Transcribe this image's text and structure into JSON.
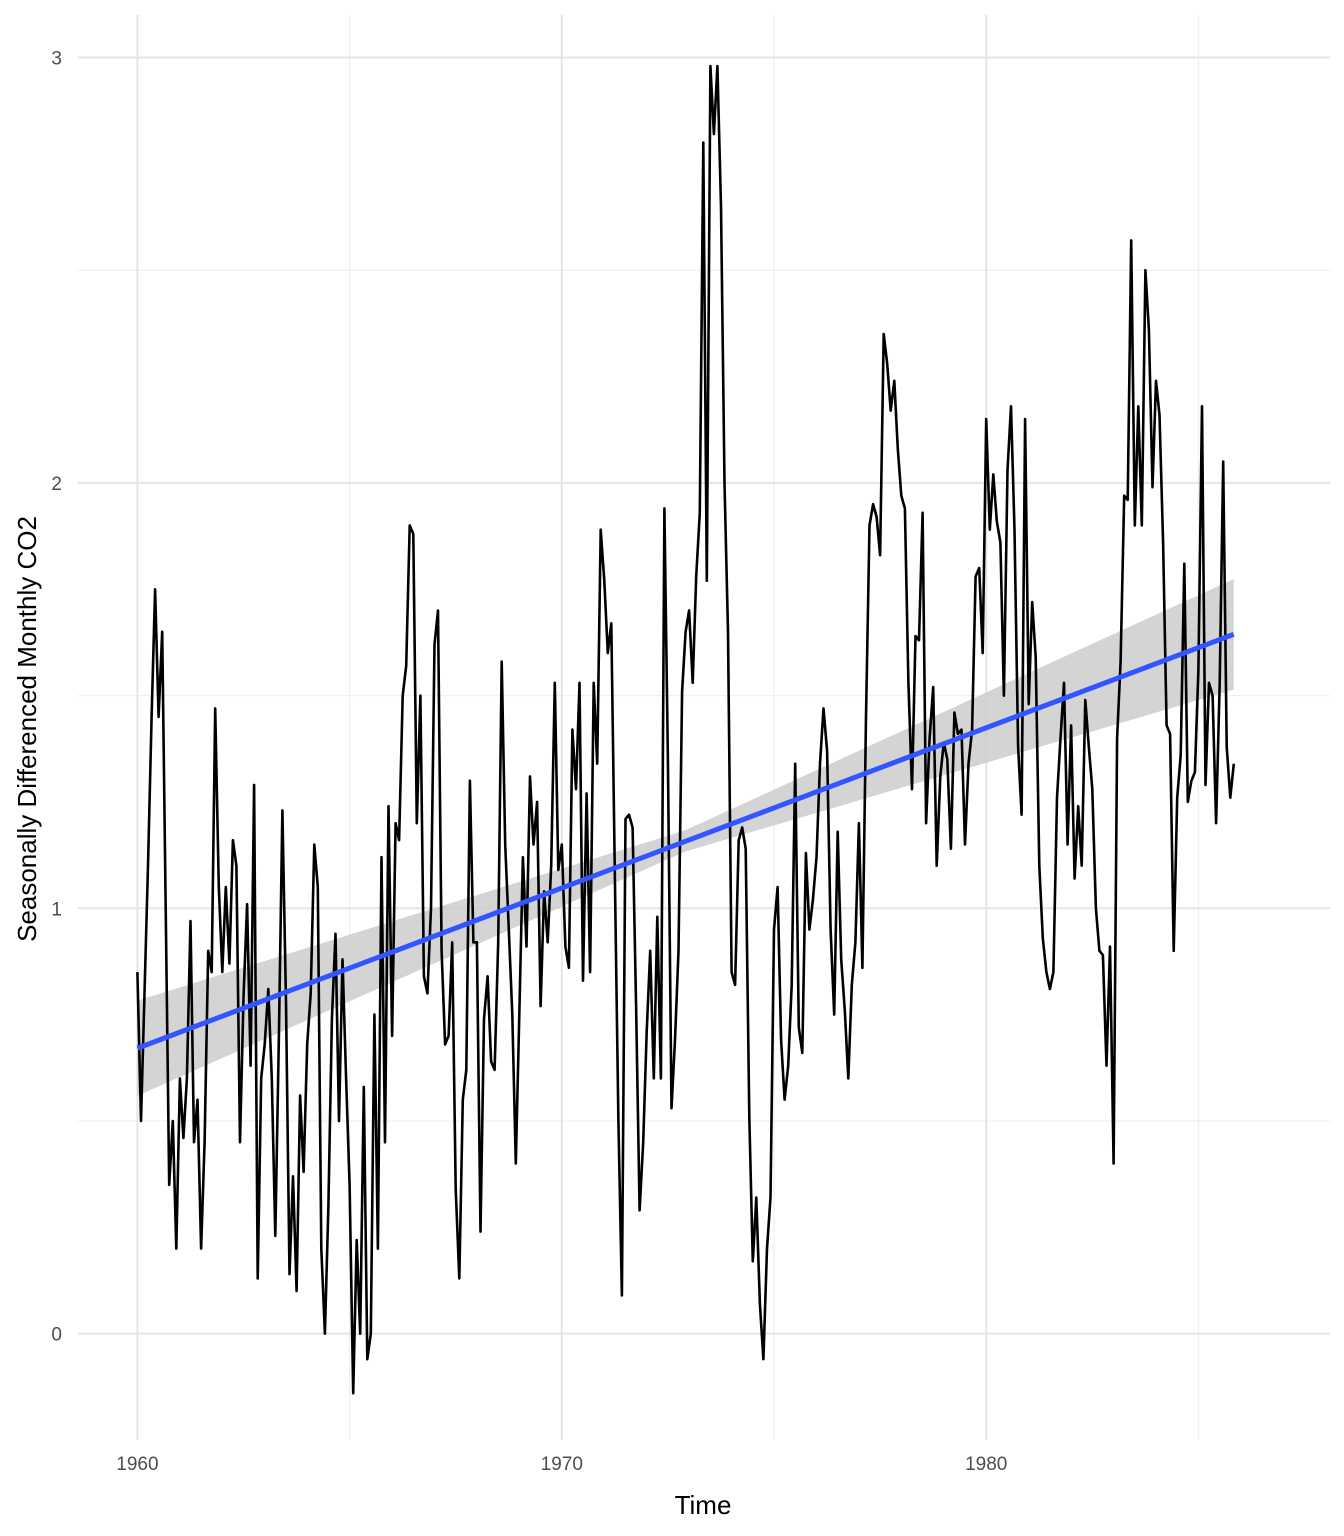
{
  "chart_data": {
    "type": "line",
    "title": "",
    "xlabel": "Time",
    "ylabel": "Seasonally Differenced Monthly CO2",
    "xlim": [
      1958.6,
      1988.1
    ],
    "ylim": [
      -0.25,
      3.1
    ],
    "x_ticks": [
      1960,
      1970,
      1980
    ],
    "x_tick_labels": [
      "1960",
      "1970",
      "1980"
    ],
    "y_ticks": [
      0,
      1,
      2,
      3
    ],
    "y_tick_labels": [
      "0",
      "1",
      "2",
      "3"
    ],
    "grid": true,
    "legend": "none",
    "series": [
      {
        "type": "line",
        "color": "#000000",
        "x_start": 1960.0,
        "x_step": 0.0833333,
        "values": [
          0.85,
          0.5,
          0.8,
          1.1,
          1.45,
          1.75,
          1.45,
          1.65,
          1.0,
          0.35,
          0.5,
          0.2,
          0.6,
          0.46,
          0.6,
          0.97,
          0.45,
          0.55,
          0.2,
          0.45,
          0.9,
          0.85,
          1.47,
          1.05,
          0.85,
          1.05,
          0.87,
          1.16,
          1.1,
          0.45,
          0.79,
          1.01,
          0.63,
          1.29,
          0.13,
          0.6,
          0.68,
          0.81,
          0.6,
          0.23,
          0.7,
          1.23,
          0.78,
          0.14,
          0.37,
          0.1,
          0.56,
          0.38,
          0.68,
          0.8,
          1.15,
          1.05,
          0.2,
          0.0,
          0.3,
          0.74,
          0.94,
          0.5,
          0.88,
          0.6,
          0.35,
          -0.14,
          0.22,
          0.0,
          0.58,
          -0.06,
          0.0,
          0.75,
          0.2,
          1.12,
          0.45,
          1.24,
          0.7,
          1.2,
          1.16,
          1.5,
          1.57,
          1.9,
          1.88,
          1.2,
          1.5,
          0.84,
          0.8,
          1.0,
          1.62,
          1.7,
          0.9,
          0.68,
          0.7,
          0.92,
          0.34,
          0.13,
          0.55,
          0.62,
          1.3,
          0.92,
          0.92,
          0.24,
          0.74,
          0.84,
          0.64,
          0.62,
          0.92,
          1.58,
          1.15,
          0.95,
          0.75,
          0.4,
          0.76,
          1.12,
          0.91,
          1.31,
          1.15,
          1.25,
          0.77,
          1.04,
          0.92,
          1.1,
          1.53,
          1.09,
          1.15,
          0.91,
          0.86,
          1.42,
          1.28,
          1.53,
          0.83,
          1.27,
          0.85,
          1.53,
          1.34,
          1.89,
          1.77,
          1.6,
          1.67,
          1.07,
          0.5,
          0.09,
          1.21,
          1.22,
          1.19,
          0.77,
          0.29,
          0.45,
          0.71,
          0.9,
          0.6,
          0.98,
          0.6,
          1.94,
          1.35,
          0.53,
          0.69,
          0.9,
          1.51,
          1.65,
          1.7,
          1.53,
          1.78,
          1.93,
          2.8,
          1.77,
          2.98,
          2.82,
          2.98,
          2.65,
          2.0,
          1.65,
          0.85,
          0.82,
          1.16,
          1.19,
          1.14,
          0.51,
          0.17,
          0.32,
          0.07,
          -0.06,
          0.2,
          0.32,
          0.95,
          1.05,
          0.69,
          0.55,
          0.63,
          0.82,
          1.34,
          0.72,
          0.66,
          1.13,
          0.95,
          1.02,
          1.12,
          1.34,
          1.47,
          1.37,
          0.95,
          0.75,
          1.18,
          0.88,
          0.76,
          0.6,
          0.82,
          0.92,
          1.2,
          0.86,
          1.45,
          1.9,
          1.95,
          1.92,
          1.83,
          2.35,
          2.28,
          2.17,
          2.24,
          2.08,
          1.97,
          1.94,
          1.53,
          1.28,
          1.64,
          1.63,
          1.93,
          1.2,
          1.4,
          1.52,
          1.1,
          1.31,
          1.39,
          1.35,
          1.14,
          1.46,
          1.41,
          1.42,
          1.15,
          1.34,
          1.42,
          1.78,
          1.8,
          1.6,
          2.15,
          1.89,
          2.02,
          1.91,
          1.86,
          1.5,
          2.03,
          2.18,
          1.89,
          1.38,
          1.22,
          2.15,
          1.48,
          1.72,
          1.59,
          1.1,
          0.93,
          0.85,
          0.81,
          0.85,
          1.26,
          1.4,
          1.53,
          1.15,
          1.43,
          1.07,
          1.24,
          1.1,
          1.49,
          1.38,
          1.28,
          1.0,
          0.9,
          0.89,
          0.63,
          0.91,
          0.4,
          1.4,
          1.58,
          1.97,
          1.96,
          2.57,
          1.9,
          2.18,
          1.9,
          2.5,
          2.36,
          1.99,
          2.24,
          2.16,
          1.86,
          1.43,
          1.41,
          0.9,
          1.26,
          1.36,
          1.81,
          1.25,
          1.3,
          1.32,
          1.56,
          2.18,
          1.29,
          1.53,
          1.5,
          1.2,
          1.53,
          2.05,
          1.38,
          1.26,
          1.34
        ]
      },
      {
        "type": "trend",
        "name": "",
        "color": "#3355ff",
        "x": [
          1960.0,
          1985.83
        ],
        "values": [
          0.671,
          1.644
        ]
      },
      {
        "type": "band",
        "color": "#cccccc",
        "x": [
          1960.0,
          1972.9,
          1985.83
        ],
        "upper": [
          0.783,
          1.183,
          1.774
        ],
        "lower": [
          0.559,
          1.133,
          1.514
        ]
      }
    ]
  }
}
